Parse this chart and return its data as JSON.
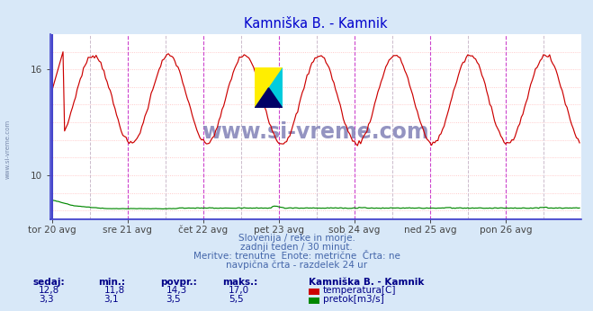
{
  "title": "Kamniška B. - Kamnik",
  "title_color": "#0000cc",
  "bg_color": "#d8e8f8",
  "plot_bg_color": "#ffffff",
  "figsize": [
    6.59,
    3.46
  ],
  "dpi": 100,
  "n_points": 336,
  "ylim_temp": [
    7.5,
    18.0
  ],
  "y_ticks_temp": [
    10,
    16
  ],
  "x_tick_labels": [
    "tor 20 avg",
    "sre 21 avg",
    "čet 22 avg",
    "pet 23 avg",
    "sob 24 avg",
    "ned 25 avg",
    "pon 26 avg"
  ],
  "x_tick_positions": [
    0,
    48,
    96,
    144,
    192,
    240,
    288
  ],
  "magenta_lines": [
    48,
    96,
    144,
    192,
    240,
    288
  ],
  "dashed_grey_lines": [
    24,
    72,
    120,
    168,
    216,
    264,
    312
  ],
  "temp_color": "#cc0000",
  "flow_color": "#008800",
  "flow_ylim": [
    0,
    60
  ],
  "watermark_text": "www.si-vreme.com",
  "watermark_color": "#8888bb",
  "info_line1": "Slovenija / reke in morje.",
  "info_line2": "zadnji teden / 30 minut.",
  "info_line3": "Meritve: trenutne  Enote: metrične  Črta: ne",
  "info_line4": "navpična črta - razdelek 24 ur",
  "info_color": "#4466aa",
  "stats_color": "#000088",
  "legend_title": "Kamniška B. - Kamnik",
  "legend_items": [
    "temperatura[C]",
    "pretok[m3/s]"
  ],
  "legend_colors": [
    "#cc0000",
    "#008800"
  ],
  "stats_headers": [
    "sedaj:",
    "min.:",
    "povpr.:",
    "maks.:"
  ],
  "stats_temp": [
    "12,8",
    "11,8",
    "14,3",
    "17,0"
  ],
  "stats_flow": [
    "3,3",
    "3,1",
    "3,5",
    "5,5"
  ],
  "left_border_color": "#4444cc",
  "bottom_border_color": "#4444cc",
  "arrow_color": "#cc0000",
  "horiz_grid_color": "#ffbbbb",
  "horiz_grid_style": ":",
  "vert_dashed_color": "#ccbbcc",
  "magenta_color": "#cc44cc"
}
